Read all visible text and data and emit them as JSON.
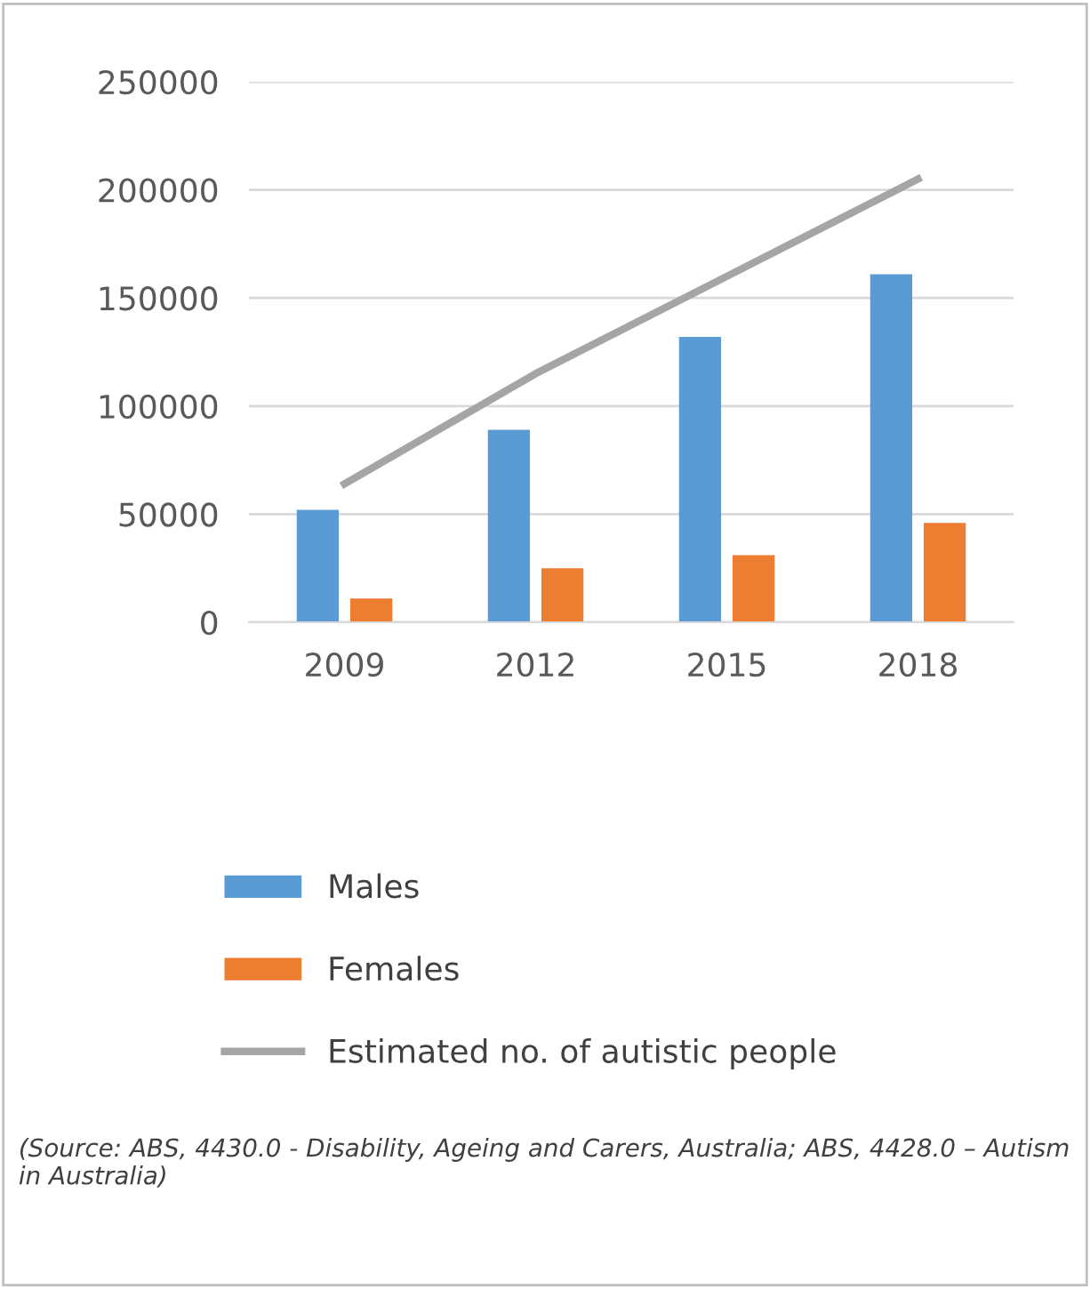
{
  "chart_data": {
    "type": "bar",
    "categories": [
      "2009",
      "2012",
      "2015",
      "2018"
    ],
    "series": [
      {
        "name": "Males",
        "color": "#5b9bd5",
        "values": [
          52000,
          89000,
          132000,
          161000
        ]
      },
      {
        "name": "Females",
        "color": "#ed7d31",
        "values": [
          11000,
          25000,
          31000,
          46000
        ]
      },
      {
        "name": "Estimated no. of autistic people",
        "type": "line",
        "color": "#a5a5a5",
        "values": [
          64000,
          115000,
          160000,
          205000
        ]
      }
    ],
    "ylim": [
      0,
      250000
    ],
    "yticks": [
      0,
      50000,
      100000,
      150000,
      200000,
      250000
    ],
    "grid": "y",
    "legend": "bottom",
    "annotations": [
      "(Source: ABS, 4430.0 - Disability, Ageing and Carers, Australia; ABS, 4428.0 – Autism in Australia)"
    ]
  }
}
